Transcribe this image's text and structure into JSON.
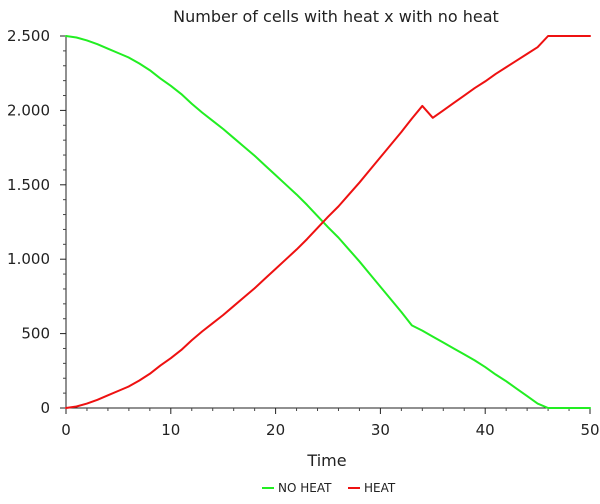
{
  "chart_data": {
    "type": "line",
    "title": "Number of cells with heat x with no heat",
    "xlabel": "Time",
    "ylabel": "",
    "xlim": [
      0,
      50
    ],
    "ylim": [
      0,
      2500
    ],
    "x_ticks": [
      0,
      10,
      20,
      30,
      40,
      50
    ],
    "y_ticks": [
      0,
      500,
      1000,
      1500,
      2000,
      2500
    ],
    "x_tick_labels": [
      "0",
      "10",
      "20",
      "30",
      "40",
      "50"
    ],
    "y_tick_labels": [
      "0",
      "500",
      "1.000",
      "1.500",
      "2.000",
      "2.500"
    ],
    "grid": false,
    "legend_position": "bottom-center",
    "series": [
      {
        "name": "NO HEAT",
        "color": "#22ee22",
        "x": [
          0,
          1,
          2,
          3,
          4,
          5,
          6,
          7,
          8,
          9,
          10,
          11,
          12,
          13,
          14,
          15,
          16,
          17,
          18,
          19,
          20,
          21,
          22,
          23,
          24,
          25,
          26,
          27,
          28,
          29,
          30,
          31,
          32,
          33,
          34,
          35,
          36,
          37,
          38,
          39,
          40,
          41,
          42,
          43,
          44,
          45,
          46,
          47,
          48,
          49,
          50
        ],
        "values": [
          2500,
          2490,
          2470,
          2445,
          2415,
          2385,
          2355,
          2315,
          2270,
          2215,
          2165,
          2110,
          2045,
          1985,
          1930,
          1875,
          1815,
          1755,
          1695,
          1630,
          1565,
          1500,
          1435,
          1365,
          1290,
          1215,
          1145,
          1065,
          985,
          900,
          815,
          730,
          645,
          555,
          520,
          480,
          440,
          400,
          360,
          320,
          275,
          225,
          180,
          130,
          80,
          30,
          0,
          0,
          0,
          0,
          0
        ]
      },
      {
        "name": "HEAT",
        "color": "#ee1111",
        "x": [
          0,
          1,
          2,
          3,
          4,
          5,
          6,
          7,
          8,
          9,
          10,
          11,
          12,
          13,
          14,
          15,
          16,
          17,
          18,
          19,
          20,
          21,
          22,
          23,
          24,
          25,
          26,
          27,
          28,
          29,
          30,
          31,
          32,
          33,
          34,
          35,
          36,
          37,
          38,
          39,
          40,
          41,
          42,
          43,
          44,
          45,
          46,
          47,
          48,
          49,
          50
        ],
        "values": [
          0,
          10,
          30,
          55,
          85,
          115,
          145,
          185,
          230,
          285,
          335,
          390,
          455,
          515,
          570,
          625,
          685,
          745,
          805,
          870,
          935,
          1000,
          1065,
          1135,
          1210,
          1285,
          1355,
          1435,
          1515,
          1600,
          1685,
          1770,
          1855,
          1945,
          2030,
          1950,
          2000,
          2050,
          2100,
          2150,
          2195,
          2245,
          2290,
          2335,
          2380,
          2425,
          2500,
          2500,
          2500,
          2500,
          2500
        ]
      }
    ]
  }
}
